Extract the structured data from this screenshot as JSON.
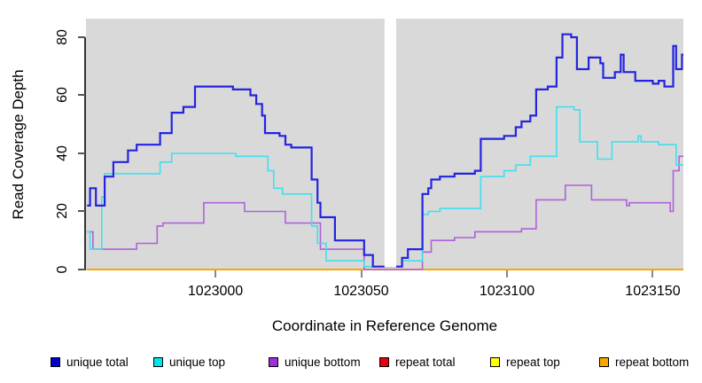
{
  "y_axis": {
    "label": "Read Coverage Depth",
    "ticks": [
      "0",
      "20",
      "40",
      "60",
      "80"
    ],
    "tick_values": [
      0,
      20,
      40,
      60,
      80
    ]
  },
  "x_axis": {
    "label": "Coordinate in Reference Genome",
    "ticks": [
      "1023000",
      "1023050",
      "1023100",
      "1023150"
    ],
    "tick_values": [
      1023000,
      1023050,
      1023100,
      1023150
    ]
  },
  "legend": [
    {
      "label": "unique total",
      "swatch_color": "#0000cc"
    },
    {
      "label": "unique top",
      "swatch_color": "#00e5ee"
    },
    {
      "label": "unique bottom",
      "swatch_color": "#9f2fd9"
    },
    {
      "label": "repeat total",
      "swatch_color": "#e8000d"
    },
    {
      "label": "repeat top",
      "swatch_color": "#ffff00"
    },
    {
      "label": "repeat bottom",
      "swatch_color": "#ffa500"
    }
  ],
  "colors": {
    "plot_background": "#d9d9d9",
    "page_background": "#ffffff",
    "axis": "#333333"
  },
  "chart_data": {
    "type": "line",
    "subtype": "step-after-coverage-plot",
    "title": "",
    "xlabel": "Coordinate in Reference Genome",
    "ylabel": "Read Coverage Depth",
    "xlim": [
      1022955.6,
      1023160.5
    ],
    "ylim": [
      0,
      86.4
    ],
    "grid": false,
    "legend_position": "bottom",
    "gap_region": {
      "x_start": 1023058,
      "x_end": 1023062,
      "note": "white vertical band, no data"
    },
    "series": [
      {
        "name": "repeat total",
        "color": "#e8000d",
        "width": 2,
        "points": [
          [
            1022956,
            0
          ]
        ]
      },
      {
        "name": "repeat top",
        "color": "#ffff00",
        "width": 2,
        "points": [
          [
            1022956,
            0
          ]
        ]
      },
      {
        "name": "repeat bottom",
        "color": "#ffa500",
        "width": 2,
        "points": [
          [
            1022956,
            0
          ]
        ]
      },
      {
        "name": "unique bottom",
        "color": "#ae62d9",
        "width": 1.6,
        "points": [
          [
            1022956,
            13
          ],
          [
            1022958,
            7
          ],
          [
            1022973,
            9
          ],
          [
            1022980,
            15
          ],
          [
            1022982,
            16
          ],
          [
            1022996,
            23
          ],
          [
            1023010,
            20
          ],
          [
            1023024,
            16
          ],
          [
            1023036,
            7
          ],
          [
            1023051,
            0
          ],
          [
            1023071,
            6
          ],
          [
            1023074,
            10
          ],
          [
            1023082,
            11
          ],
          [
            1023089,
            13
          ],
          [
            1023105,
            14
          ],
          [
            1023110,
            24
          ],
          [
            1023120,
            29
          ],
          [
            1023129,
            24
          ],
          [
            1023141,
            22
          ],
          [
            1023142,
            23
          ],
          [
            1023156,
            20
          ],
          [
            1023157,
            34
          ],
          [
            1023159,
            39
          ]
        ]
      },
      {
        "name": "unique top",
        "color": "#3fe0ee",
        "width": 1.6,
        "points": [
          [
            1022956,
            13
          ],
          [
            1022957,
            7
          ],
          [
            1022961,
            25
          ],
          [
            1022962,
            33
          ],
          [
            1022981,
            37
          ],
          [
            1022985,
            40
          ],
          [
            1023007,
            39
          ],
          [
            1023018,
            34
          ],
          [
            1023020,
            28
          ],
          [
            1023023,
            26
          ],
          [
            1023033,
            15
          ],
          [
            1023035,
            9
          ],
          [
            1023038,
            3
          ],
          [
            1023051,
            1
          ],
          [
            1023064,
            3
          ],
          [
            1023071,
            19
          ],
          [
            1023073,
            20
          ],
          [
            1023077,
            21
          ],
          [
            1023091,
            32
          ],
          [
            1023099,
            34
          ],
          [
            1023103,
            36
          ],
          [
            1023108,
            39
          ],
          [
            1023117,
            56
          ],
          [
            1023123,
            55
          ],
          [
            1023125,
            44
          ],
          [
            1023131,
            38
          ],
          [
            1023136,
            44
          ],
          [
            1023145,
            46
          ],
          [
            1023146,
            44
          ],
          [
            1023152,
            43
          ],
          [
            1023158,
            36
          ]
        ]
      },
      {
        "name": "unique total",
        "color": "#2424e0",
        "width": 2.2,
        "points": [
          [
            1022956,
            22
          ],
          [
            1022957,
            28
          ],
          [
            1022959,
            22
          ],
          [
            1022962,
            32
          ],
          [
            1022965,
            37
          ],
          [
            1022970,
            41
          ],
          [
            1022973,
            43
          ],
          [
            1022981,
            47
          ],
          [
            1022985,
            54
          ],
          [
            1022989,
            56
          ],
          [
            1022993,
            63
          ],
          [
            1023006,
            62
          ],
          [
            1023012,
            60
          ],
          [
            1023014,
            57
          ],
          [
            1023016,
            53
          ],
          [
            1023017,
            47
          ],
          [
            1023022,
            46
          ],
          [
            1023024,
            43
          ],
          [
            1023026,
            42
          ],
          [
            1023033,
            31
          ],
          [
            1023035,
            23
          ],
          [
            1023036,
            18
          ],
          [
            1023041,
            10
          ],
          [
            1023051,
            5
          ],
          [
            1023054,
            1
          ],
          [
            1023062,
            1
          ],
          [
            1023064,
            4
          ],
          [
            1023066,
            7
          ],
          [
            1023071,
            26
          ],
          [
            1023073,
            28
          ],
          [
            1023074,
            31
          ],
          [
            1023077,
            32
          ],
          [
            1023082,
            33
          ],
          [
            1023089,
            34
          ],
          [
            1023091,
            45
          ],
          [
            1023099,
            46
          ],
          [
            1023103,
            49
          ],
          [
            1023105,
            51
          ],
          [
            1023108,
            53
          ],
          [
            1023110,
            62
          ],
          [
            1023114,
            63
          ],
          [
            1023117,
            73
          ],
          [
            1023119,
            81
          ],
          [
            1023122,
            80
          ],
          [
            1023124,
            69
          ],
          [
            1023128,
            73
          ],
          [
            1023132,
            71
          ],
          [
            1023133,
            66
          ],
          [
            1023137,
            68
          ],
          [
            1023139,
            74
          ],
          [
            1023140,
            68
          ],
          [
            1023144,
            65
          ],
          [
            1023150,
            64
          ],
          [
            1023152,
            65
          ],
          [
            1023154,
            63
          ],
          [
            1023157,
            77
          ],
          [
            1023158,
            69
          ],
          [
            1023160,
            74
          ]
        ]
      }
    ]
  }
}
